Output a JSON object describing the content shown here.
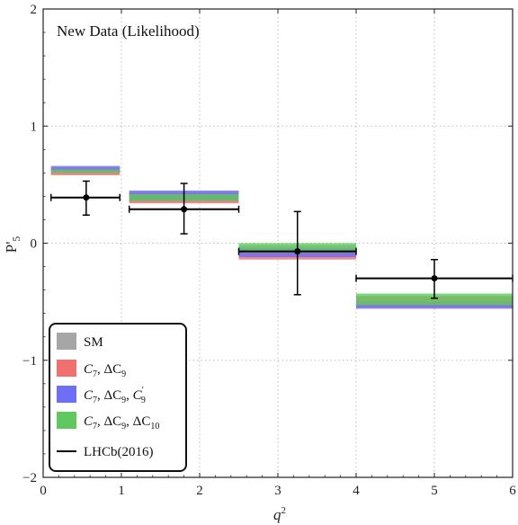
{
  "chart_data": {
    "type": "bar",
    "title": "New Data (Likelihood)",
    "xlabel": "q²",
    "ylabel": "P'₅",
    "xlim": [
      0,
      6
    ],
    "ylim": [
      -2,
      2
    ],
    "xticks": [
      0,
      1,
      2,
      3,
      4,
      5,
      6
    ],
    "yticks": [
      -2,
      -1,
      0,
      1,
      2
    ],
    "grid": true,
    "legend_position": "bottom-left",
    "series": [
      {
        "name": "SM",
        "color": "#a6a6a6",
        "bins": [
          {
            "x0": 0.1,
            "x1": 0.98,
            "lo": 0.59,
            "hi": 0.65
          },
          {
            "x0": 1.1,
            "x1": 2.5,
            "lo": 0.35,
            "hi": 0.44
          },
          {
            "x0": 2.5,
            "x1": 4.0,
            "lo": -0.12,
            "hi": -0.02
          },
          {
            "x0": 4.0,
            "x1": 6.0,
            "lo": -0.55,
            "hi": -0.45
          }
        ]
      },
      {
        "name": "C₇, ΔC₉",
        "color": "#f07070",
        "bins": [
          {
            "x0": 0.1,
            "x1": 0.98,
            "lo": 0.58,
            "hi": 0.64
          },
          {
            "x0": 1.1,
            "x1": 2.5,
            "lo": 0.34,
            "hi": 0.43
          },
          {
            "x0": 2.5,
            "x1": 4.0,
            "lo": -0.14,
            "hi": -0.05
          },
          {
            "x0": 4.0,
            "x1": 6.0,
            "lo": -0.55,
            "hi": -0.46
          }
        ]
      },
      {
        "name": "C₇, ΔC₉, C′₉",
        "color": "#6f6ff5",
        "bins": [
          {
            "x0": 0.1,
            "x1": 0.98,
            "lo": 0.61,
            "hi": 0.66
          },
          {
            "x0": 1.1,
            "x1": 2.5,
            "lo": 0.37,
            "hi": 0.45
          },
          {
            "x0": 2.5,
            "x1": 4.0,
            "lo": -0.12,
            "hi": -0.04
          },
          {
            "x0": 4.0,
            "x1": 6.0,
            "lo": -0.56,
            "hi": -0.5
          }
        ]
      },
      {
        "name": "C₇, ΔC₉, ΔC₁₀",
        "color": "#5fc95f",
        "bins": [
          {
            "x0": 0.1,
            "x1": 0.98,
            "lo": 0.6,
            "hi": 0.63
          },
          {
            "x0": 1.1,
            "x1": 2.5,
            "lo": 0.36,
            "hi": 0.42
          },
          {
            "x0": 2.5,
            "x1": 4.0,
            "lo": -0.08,
            "hi": 0.0
          },
          {
            "x0": 4.0,
            "x1": 6.0,
            "lo": -0.53,
            "hi": -0.43
          }
        ]
      }
    ],
    "measurements": {
      "name": "LHCb(2016)",
      "color": "#000000",
      "points": [
        {
          "x0": 0.1,
          "x1": 0.98,
          "x": 0.55,
          "y": 0.39,
          "ylo": 0.24,
          "yhi": 0.53
        },
        {
          "x0": 1.1,
          "x1": 2.5,
          "x": 1.8,
          "y": 0.29,
          "ylo": 0.08,
          "yhi": 0.51
        },
        {
          "x0": 2.5,
          "x1": 4.0,
          "x": 3.25,
          "y": -0.07,
          "ylo": -0.44,
          "yhi": 0.27
        },
        {
          "x0": 4.0,
          "x1": 6.0,
          "x": 5.0,
          "y": -0.3,
          "ylo": -0.47,
          "yhi": -0.14
        }
      ]
    }
  }
}
